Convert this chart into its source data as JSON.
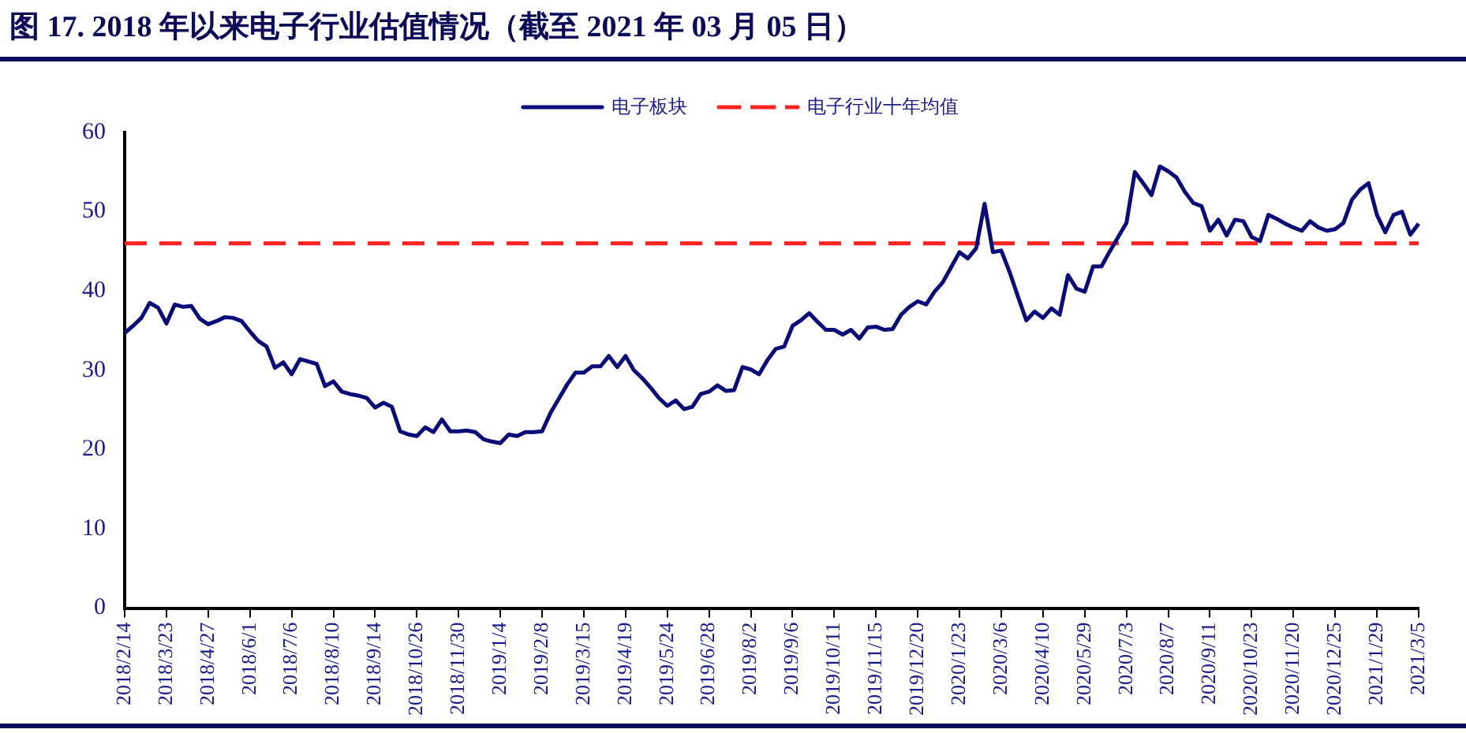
{
  "chart_data": {
    "type": "line",
    "title": "图 17. 2018 年以来电子行业估值情况（截至 2021 年 03 月 05 日）",
    "categories": [
      "2018/2/14",
      null,
      null,
      null,
      null,
      "2018/3/23",
      null,
      null,
      null,
      null,
      "2018/4/27",
      null,
      null,
      null,
      null,
      "2018/6/1",
      null,
      null,
      null,
      null,
      "2018/7/6",
      null,
      null,
      null,
      null,
      "2018/8/10",
      null,
      null,
      null,
      null,
      "2018/9/14",
      null,
      null,
      null,
      null,
      "2018/10/26",
      null,
      null,
      null,
      null,
      "2018/11/30",
      null,
      null,
      null,
      null,
      "2019/1/4",
      null,
      null,
      null,
      null,
      "2019/2/8",
      null,
      null,
      null,
      null,
      "2019/3/15",
      null,
      null,
      null,
      null,
      "2019/4/19",
      null,
      null,
      null,
      null,
      "2019/5/24",
      null,
      null,
      null,
      null,
      "2019/6/28",
      null,
      null,
      null,
      null,
      "2019/8/2",
      null,
      null,
      null,
      null,
      "2019/9/6",
      null,
      null,
      null,
      null,
      "2019/10/11",
      null,
      null,
      null,
      null,
      "2019/11/15",
      null,
      null,
      null,
      null,
      "2019/12/20",
      null,
      null,
      null,
      null,
      "2020/1/23",
      null,
      null,
      null,
      null,
      "2020/3/6",
      null,
      null,
      null,
      null,
      "2020/4/10",
      null,
      null,
      null,
      null,
      "2020/5/29",
      null,
      null,
      null,
      null,
      "2020/7/3",
      null,
      null,
      null,
      null,
      "2020/8/7",
      null,
      null,
      null,
      null,
      "2020/9/11",
      null,
      null,
      null,
      null,
      "2020/10/23",
      null,
      null,
      null,
      null,
      "2020/11/20",
      null,
      null,
      null,
      null,
      "2020/12/25",
      null,
      null,
      null,
      null,
      "2021/1/29",
      null,
      null,
      null,
      null,
      "2021/3/5"
    ],
    "series": [
      {
        "name": "电子板块",
        "color": "#0b0b7a",
        "values": [
          34.7,
          35.6,
          36.6,
          38.5,
          37.9,
          35.9,
          38.3,
          38,
          38.1,
          36.5,
          35.8,
          36.2,
          36.7,
          36.6,
          36.2,
          34.9,
          33.7,
          33,
          30.3,
          31,
          29.5,
          31.4,
          31.1,
          30.8,
          28,
          28.6,
          27.3,
          27,
          26.8,
          26.5,
          25.3,
          25.9,
          25.4,
          22.3,
          21.9,
          21.7,
          22.8,
          22.2,
          23.8,
          22.3,
          22.3,
          22.4,
          22.2,
          21.3,
          21,
          20.8,
          21.9,
          21.7,
          22.2,
          22.2,
          22.3,
          24.6,
          26.4,
          28.2,
          29.7,
          29.7,
          30.5,
          30.5,
          31.8,
          30.4,
          31.8,
          30,
          29,
          27.8,
          26.5,
          25.5,
          26.2,
          25.1,
          25.4,
          27,
          27.3,
          28.1,
          27.4,
          27.5,
          30.4,
          30.1,
          29.5,
          31.3,
          32.7,
          33,
          35.6,
          36.3,
          37.2,
          36.1,
          35.1,
          35.1,
          34.5,
          35.1,
          34,
          35.4,
          35.5,
          35.1,
          35.2,
          37,
          38,
          38.7,
          38.3,
          39.9,
          41.1,
          43,
          44.9,
          44.1,
          45.4,
          51,
          44.9,
          45.1,
          42.4,
          39.3,
          36.3,
          37.4,
          36.6,
          37.8,
          37,
          42,
          40.3,
          39.9,
          43.1,
          43.1,
          45,
          46.8,
          48.6,
          55,
          53.6,
          52.1,
          55.7,
          55.1,
          54.3,
          52.5,
          51.1,
          50.7,
          47.6,
          49,
          47,
          49,
          48.8,
          46.8,
          46.3,
          49.6,
          49.1,
          48.5,
          48,
          47.6,
          48.8,
          48,
          47.6,
          47.8,
          48.6,
          51.5,
          52.8,
          53.6,
          49.6,
          47.4,
          49.6,
          50,
          47.1,
          48.5
        ]
      },
      {
        "name": "电子行业十年均值",
        "color": "#ff2020",
        "line_style": "dashed",
        "values": [
          46,
          46,
          46,
          46,
          46,
          46,
          46,
          46,
          46,
          46,
          46,
          46,
          46,
          46,
          46,
          46,
          46,
          46,
          46,
          46,
          46,
          46,
          46,
          46,
          46,
          46,
          46,
          46,
          46,
          46,
          46,
          46,
          46,
          46,
          46,
          46,
          46,
          46,
          46,
          46,
          46,
          46,
          46,
          46,
          46,
          46,
          46,
          46,
          46,
          46,
          46,
          46,
          46,
          46,
          46,
          46,
          46,
          46,
          46,
          46,
          46,
          46,
          46,
          46,
          46,
          46,
          46,
          46,
          46,
          46,
          46,
          46,
          46,
          46,
          46,
          46,
          46,
          46,
          46,
          46,
          46,
          46,
          46,
          46,
          46,
          46,
          46,
          46,
          46,
          46,
          46,
          46,
          46,
          46,
          46,
          46,
          46,
          46,
          46,
          46,
          46,
          46,
          46,
          46,
          46,
          46,
          46,
          46,
          46,
          46,
          46,
          46,
          46,
          46,
          46,
          46,
          46,
          46,
          46,
          46,
          46,
          46,
          46,
          46,
          46,
          46,
          46,
          46,
          46,
          46,
          46,
          46,
          46,
          46,
          46,
          46,
          46,
          46,
          46,
          46,
          46,
          46,
          46,
          46,
          46,
          46,
          46,
          46,
          46,
          46,
          46,
          46,
          46,
          46,
          46,
          46
        ]
      }
    ],
    "ylim": [
      0,
      60
    ],
    "yticks": [
      0,
      10,
      20,
      30,
      40,
      50,
      60
    ],
    "grid": false,
    "legend": "top"
  }
}
